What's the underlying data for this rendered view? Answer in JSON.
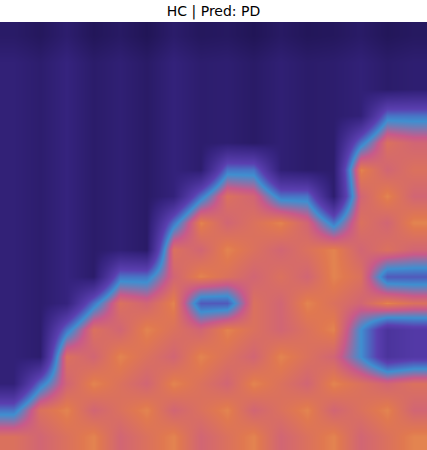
{
  "chart_data": {
    "type": "heatmap",
    "title": "HC | Pred: PD",
    "zlim": [
      0,
      1
    ],
    "tick_labels": false,
    "cells": [
      [
        0.13,
        0.1,
        0.15,
        0.09,
        0.12,
        0.08,
        0.14,
        0.1,
        0.11,
        0.08,
        0.12,
        0.09,
        0.1,
        0.13,
        0.09,
        0.11
      ],
      [
        0.18,
        0.15,
        0.2,
        0.14,
        0.17,
        0.13,
        0.19,
        0.15,
        0.16,
        0.13,
        0.17,
        0.14,
        0.15,
        0.18,
        0.14,
        0.16
      ],
      [
        0.18,
        0.15,
        0.2,
        0.14,
        0.17,
        0.13,
        0.19,
        0.15,
        0.16,
        0.13,
        0.17,
        0.14,
        0.15,
        0.18,
        0.14,
        0.16
      ],
      [
        0.18,
        0.15,
        0.2,
        0.14,
        0.17,
        0.13,
        0.19,
        0.15,
        0.16,
        0.13,
        0.17,
        0.14,
        0.15,
        0.18,
        0.55,
        0.55
      ],
      [
        0.18,
        0.15,
        0.2,
        0.14,
        0.17,
        0.13,
        0.19,
        0.15,
        0.16,
        0.13,
        0.17,
        0.14,
        0.15,
        0.55,
        0.85,
        0.8
      ],
      [
        0.18,
        0.15,
        0.2,
        0.14,
        0.17,
        0.13,
        0.19,
        0.15,
        0.55,
        0.55,
        0.17,
        0.14,
        0.15,
        0.9,
        0.8,
        0.85
      ],
      [
        0.18,
        0.15,
        0.2,
        0.14,
        0.17,
        0.13,
        0.19,
        0.55,
        0.85,
        0.8,
        0.55,
        0.55,
        0.15,
        0.8,
        0.9,
        0.8
      ],
      [
        0.18,
        0.15,
        0.2,
        0.14,
        0.17,
        0.13,
        0.55,
        0.9,
        0.8,
        0.85,
        0.9,
        0.8,
        0.55,
        0.85,
        0.8,
        0.9
      ],
      [
        0.18,
        0.15,
        0.2,
        0.14,
        0.17,
        0.13,
        0.85,
        0.8,
        0.9,
        0.85,
        0.8,
        0.85,
        0.9,
        0.8,
        0.85,
        0.8
      ],
      [
        0.18,
        0.15,
        0.2,
        0.14,
        0.55,
        0.55,
        0.8,
        0.9,
        0.85,
        0.8,
        0.85,
        0.8,
        0.9,
        0.85,
        0.5,
        0.5
      ],
      [
        0.18,
        0.15,
        0.2,
        0.55,
        0.85,
        0.8,
        0.9,
        0.5,
        0.5,
        0.85,
        0.8,
        0.9,
        0.85,
        0.8,
        0.9,
        0.85
      ],
      [
        0.18,
        0.15,
        0.55,
        0.85,
        0.8,
        0.9,
        0.85,
        0.8,
        0.9,
        0.85,
        0.8,
        0.85,
        0.9,
        0.6,
        0.35,
        0.4
      ],
      [
        0.18,
        0.15,
        0.85,
        0.8,
        0.9,
        0.85,
        0.8,
        0.9,
        0.85,
        0.8,
        0.9,
        0.85,
        0.8,
        0.6,
        0.35,
        0.4
      ],
      [
        0.18,
        0.55,
        0.8,
        0.9,
        0.85,
        0.8,
        0.9,
        0.85,
        0.8,
        0.9,
        0.85,
        0.8,
        0.9,
        0.85,
        0.8,
        0.85
      ],
      [
        0.55,
        0.85,
        0.9,
        0.8,
        0.85,
        0.9,
        0.8,
        0.85,
        0.9,
        0.8,
        0.85,
        0.9,
        0.8,
        0.85,
        0.9,
        0.8
      ],
      [
        0.85,
        0.8,
        0.85,
        0.9,
        0.8,
        0.85,
        0.9,
        0.8,
        0.85,
        0.9,
        0.8,
        0.85,
        0.9,
        0.8,
        0.85,
        0.9
      ]
    ]
  }
}
